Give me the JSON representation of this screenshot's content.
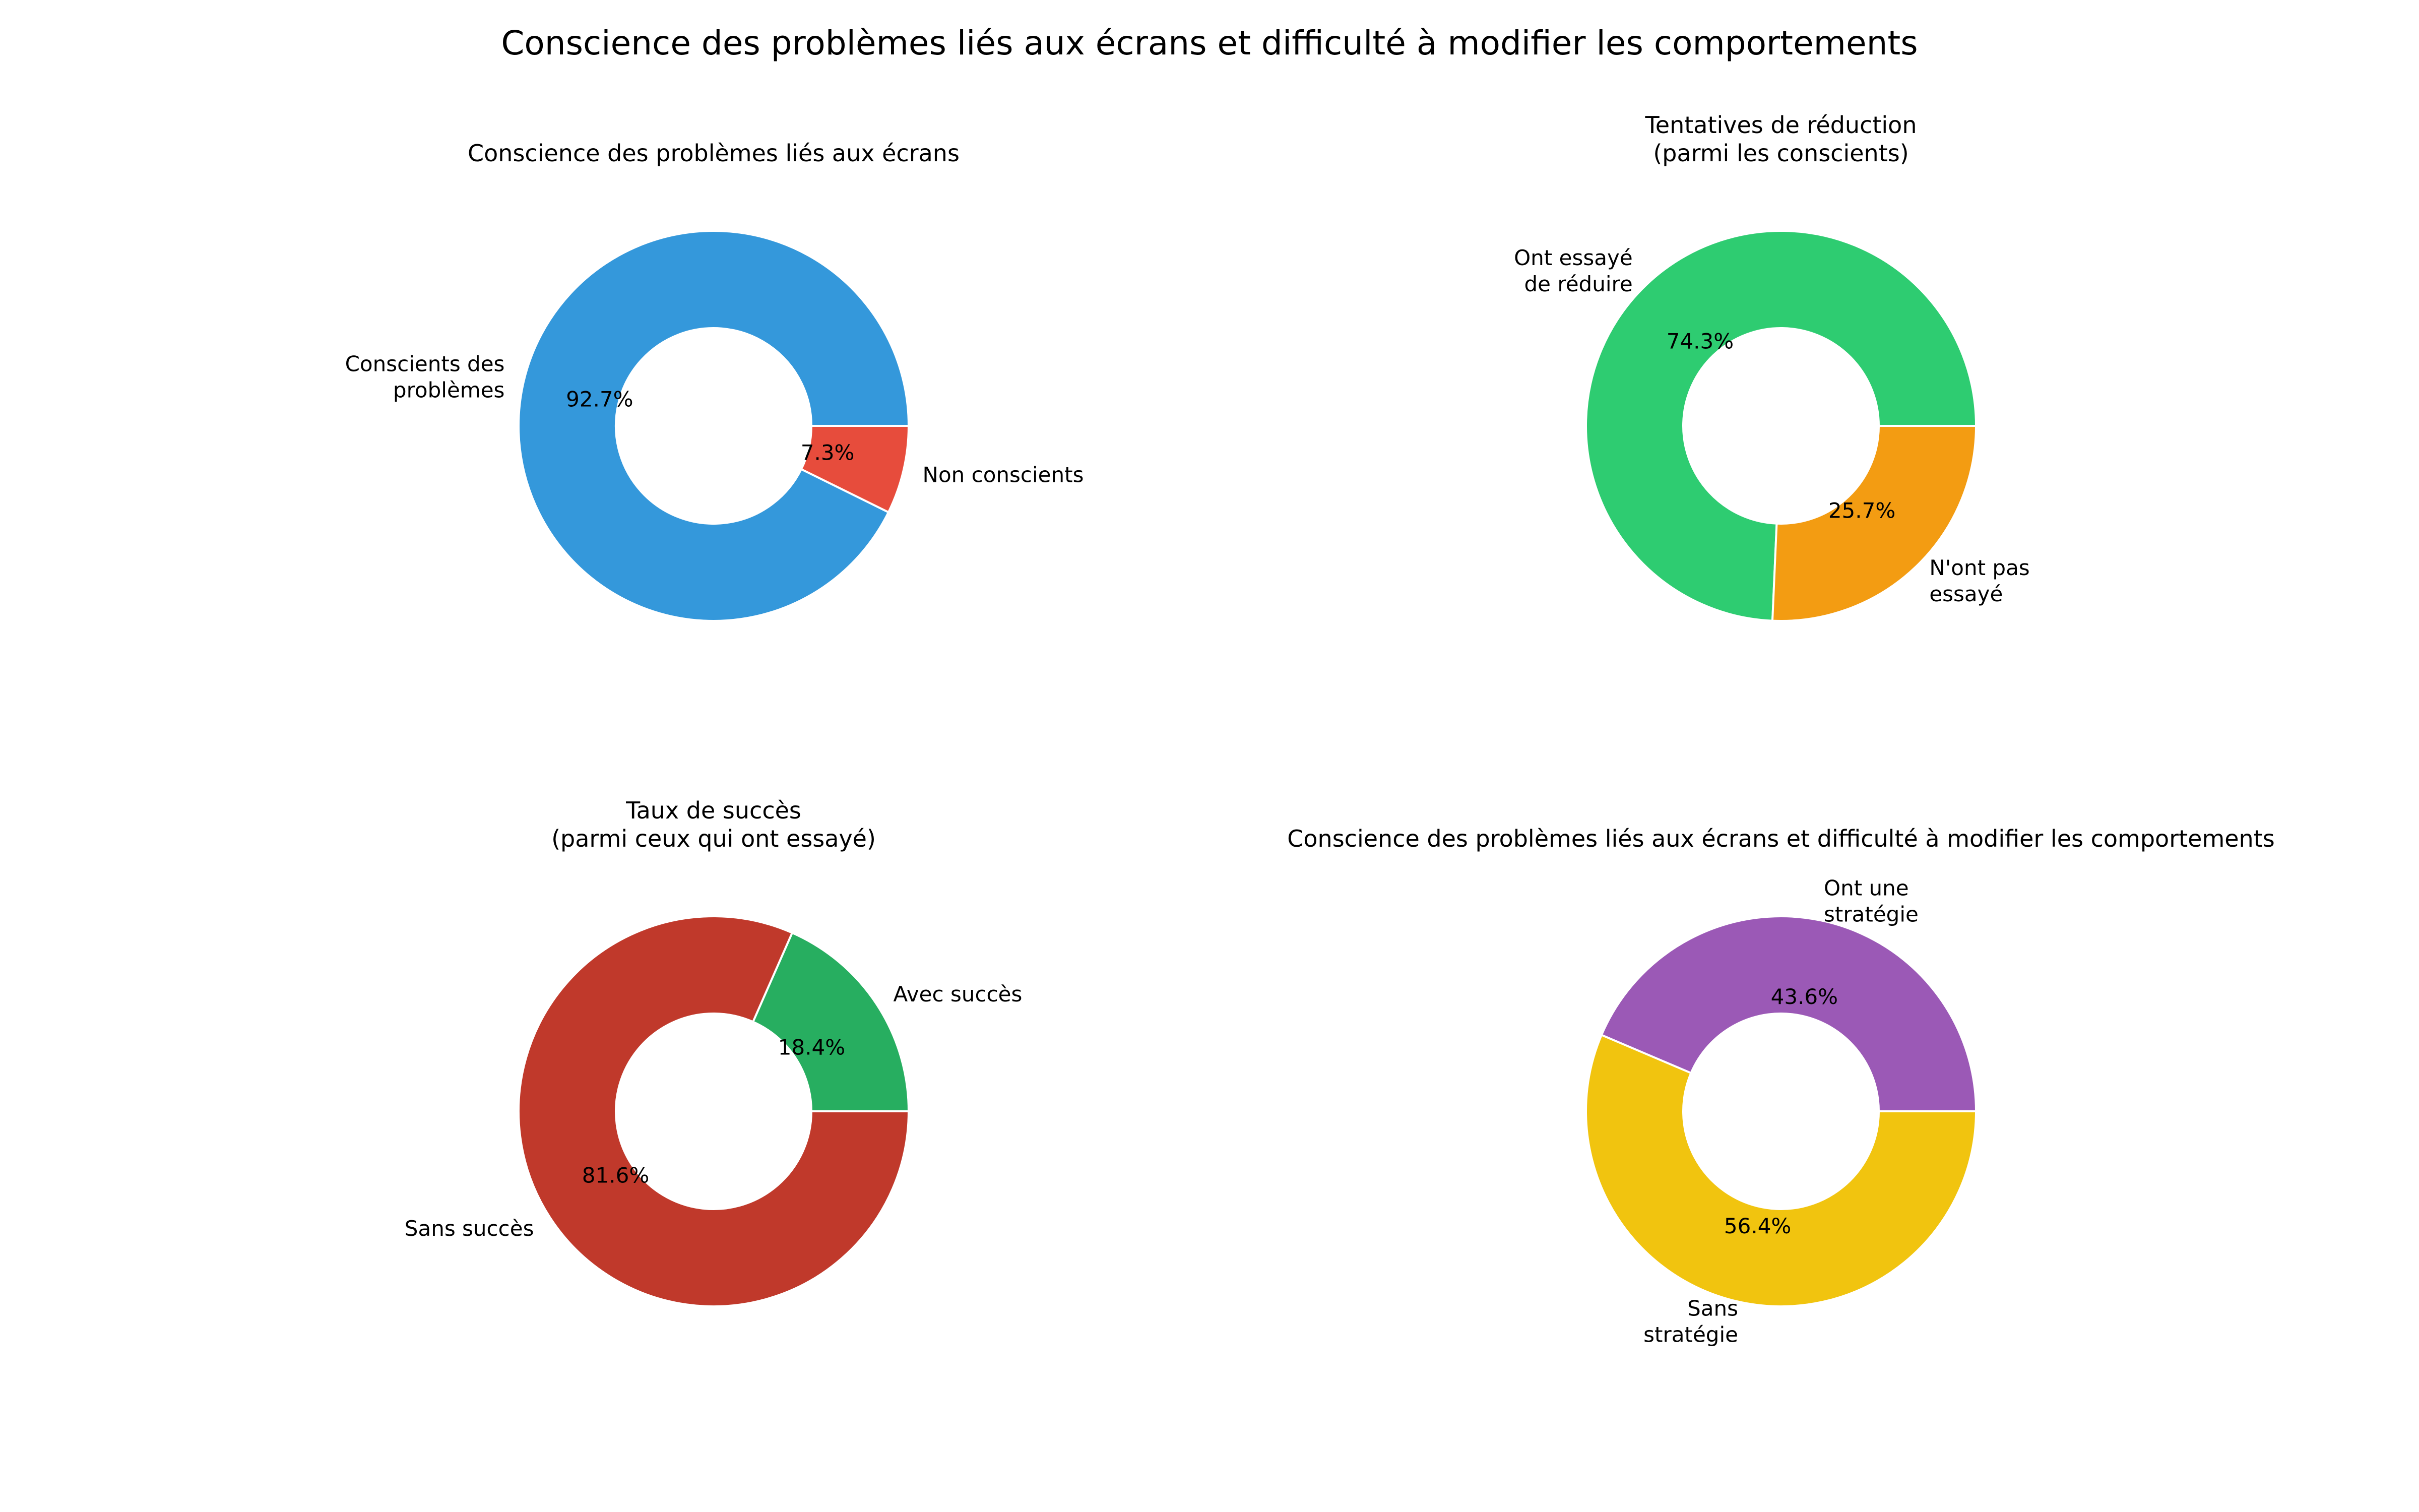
{
  "suptitle": "Conscience des problèmes liés aux écrans et difficulté à modifier les comportements",
  "chart_data": [
    {
      "type": "pie",
      "donut": true,
      "title": "Conscience des problèmes liés aux écrans",
      "startangle": 0,
      "slices": [
        {
          "label": "Conscients des\nproblèmes",
          "value": 92.7,
          "pct_label": "92.7%",
          "color": "#3498db"
        },
        {
          "label": "Non conscients",
          "value": 7.3,
          "pct_label": "7.3%",
          "color": "#e74c3c"
        }
      ]
    },
    {
      "type": "pie",
      "donut": true,
      "title": "Tentatives de réduction\n(parmi les conscients)",
      "startangle": 0,
      "slices": [
        {
          "label": "Ont essayé\nde réduire",
          "value": 74.3,
          "pct_label": "74.3%",
          "color": "#2ecc71"
        },
        {
          "label": "N'ont pas\nessayé",
          "value": 25.7,
          "pct_label": "25.7%",
          "color": "#f39c12"
        }
      ]
    },
    {
      "type": "pie",
      "donut": true,
      "title": "Taux de succès\n(parmi ceux qui ont essayé)",
      "startangle": 0,
      "slices": [
        {
          "label": "Avec succès",
          "value": 18.4,
          "pct_label": "18.4%",
          "color": "#27ae60"
        },
        {
          "label": "Sans succès",
          "value": 81.6,
          "pct_label": "81.6%",
          "color": "#c0392b"
        }
      ]
    },
    {
      "type": "pie",
      "donut": true,
      "title": "Conscience des problèmes liés aux écrans et difficulté à modifier les comportements",
      "startangle": 0,
      "slices": [
        {
          "label": "Ont une\nstratégie",
          "value": 43.6,
          "pct_label": "43.6%",
          "color": "#9b59b6"
        },
        {
          "label": "Sans\nstratégie",
          "value": 56.4,
          "pct_label": "56.4%",
          "color": "#f1c40f"
        }
      ]
    }
  ]
}
